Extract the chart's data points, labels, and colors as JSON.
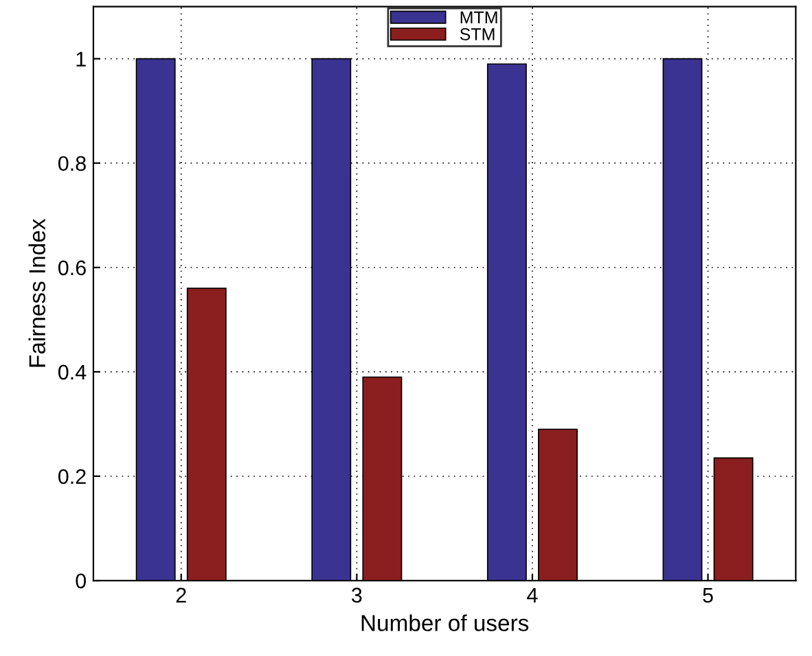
{
  "chart_data": {
    "type": "bar",
    "xlabel": "Number of users",
    "ylabel": "Fairness Index",
    "categories": [
      "2",
      "3",
      "4",
      "5"
    ],
    "series": [
      {
        "name": "MTM",
        "color": "#3a3391",
        "values": [
          1.0,
          1.0,
          0.99,
          1.0
        ]
      },
      {
        "name": "STM",
        "color": "#8b1e1e",
        "values": [
          0.56,
          0.39,
          0.29,
          0.235
        ]
      }
    ],
    "ylim": [
      0,
      1.1
    ],
    "yticks": [
      0,
      0.2,
      0.4,
      0.6,
      0.8,
      1
    ],
    "grid": true,
    "legend": "top"
  }
}
